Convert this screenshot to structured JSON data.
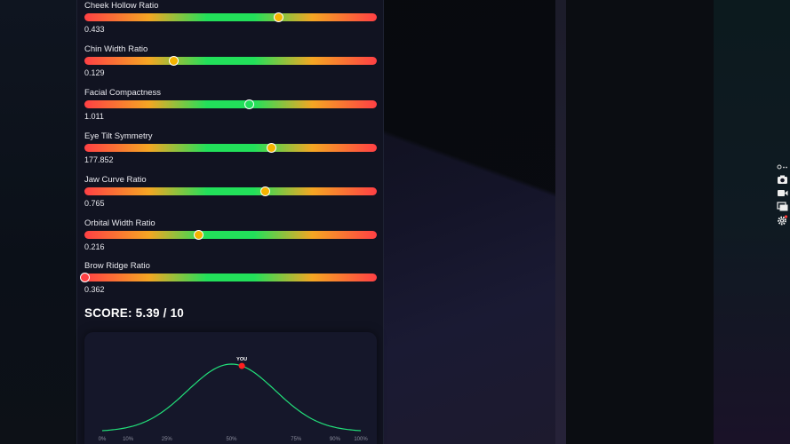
{
  "metrics": [
    {
      "label": "Cheek Hollow Ratio",
      "value": "0.433",
      "position": 0.664,
      "knob_color": "#f5b400"
    },
    {
      "label": "Chin Width Ratio",
      "value": "0.129",
      "position": 0.304,
      "knob_color": "#f5b400"
    },
    {
      "label": "Facial Compactness",
      "value": "1.011",
      "position": 0.561,
      "knob_color": "#22e05a"
    },
    {
      "label": "Eye Tilt Symmetry",
      "value": "177.852",
      "position": 0.638,
      "knob_color": "#f5b400"
    },
    {
      "label": "Jaw Curve Ratio",
      "value": "0.765",
      "position": 0.617,
      "knob_color": "#f5b400"
    },
    {
      "label": "Orbital Width Ratio",
      "value": "0.216",
      "position": 0.389,
      "knob_color": "#f5b400"
    },
    {
      "label": "Brow Ridge Ratio",
      "value": "0.362",
      "position": 0.0,
      "knob_color": "#ff4044"
    }
  ],
  "score": {
    "text": "SCORE: 5.39 / 10"
  },
  "chart_data": {
    "type": "line",
    "x_ticks": [
      "0%",
      "10%",
      "25%",
      "50%",
      "75%",
      "90%",
      "100%"
    ],
    "tick_percentiles": [
      0,
      10,
      25,
      50,
      75,
      90,
      100
    ],
    "marker_label": "YOU",
    "marker_percentile": 54,
    "line_color": "#22e07a",
    "marker_color": "#ff2020"
  },
  "toolbar": {
    "icons": [
      "pin-icon",
      "camera-icon",
      "video-icon",
      "window-icon",
      "gear-icon"
    ]
  }
}
